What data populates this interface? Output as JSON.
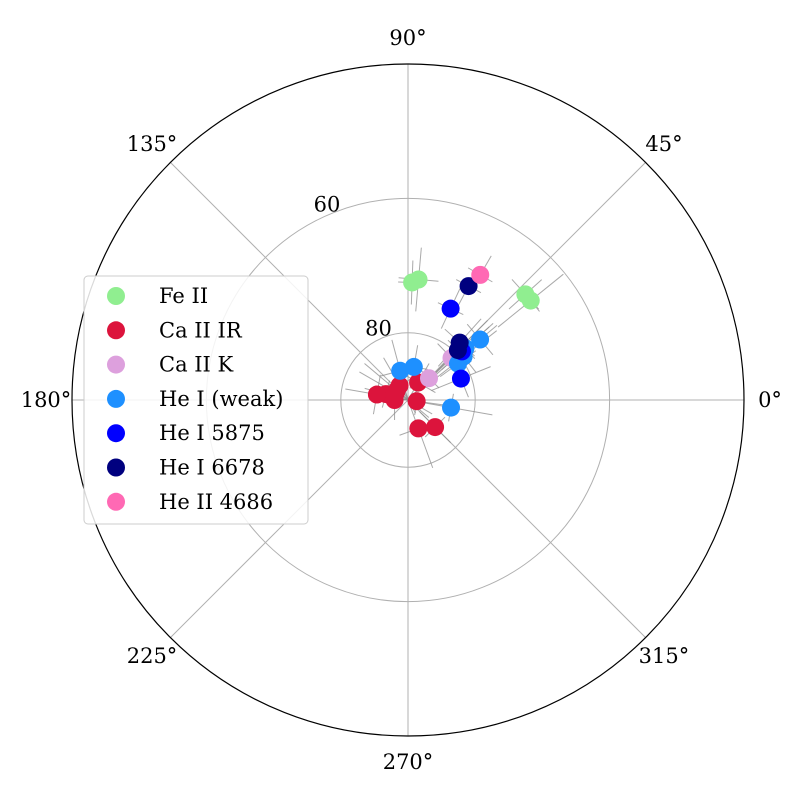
{
  "chart_data": {
    "type": "scatter",
    "projection": "polar",
    "theta_unit": "degrees",
    "radial_axis": "inclination (90 at center, decreasing outward)",
    "grid": true,
    "theta_ticks": [
      "0°",
      "45°",
      "90°",
      "135°",
      "180°",
      "225°",
      "270°",
      "315°"
    ],
    "r_ticks": [
      {
        "value": 80,
        "label": "80"
      },
      {
        "value": 60,
        "label": "60"
      }
    ],
    "rlim": [
      90,
      40
    ],
    "legend": {
      "placement": "left"
    },
    "series": [
      {
        "name": "Fe II",
        "color": "#90ee90",
        "points": [
          [
            88,
            72.5
          ],
          [
            85,
            72
          ],
          [
            39,
            66.5
          ],
          [
            42,
            66.5
          ]
        ]
      },
      {
        "name": "Ca II IR",
        "color": "#dc143c",
        "points": [
          [
            165,
            86.6
          ],
          [
            170,
            85.3
          ],
          [
            140,
            87.8
          ],
          [
            180,
            88.0
          ],
          [
            352,
            88.7
          ],
          [
            290,
            85.5
          ],
          [
            315,
            84.3
          ],
          [
            120,
            87.5
          ],
          [
            150,
            87.9
          ],
          [
            60,
            87.0
          ]
        ]
      },
      {
        "name": "Ca II K",
        "color": "#dda0dd",
        "points": [
          [
            46,
            85.5
          ],
          [
            44,
            81.0
          ]
        ]
      },
      {
        "name": "He I (weak)",
        "color": "#1e90ff",
        "points": [
          [
            80,
            85.0
          ],
          [
            105,
            85.5
          ],
          [
            350,
            83.5
          ],
          [
            40,
            76.0
          ],
          [
            42,
            78.5
          ],
          [
            38,
            79.5
          ],
          [
            36,
            80.8
          ]
        ]
      },
      {
        "name": "He I 5875",
        "color": "#0000ff",
        "points": [
          [
            65,
            75.0
          ],
          [
            22,
            81.5
          ],
          [
            42,
            79.2
          ]
        ]
      },
      {
        "name": "He I 6678",
        "color": "#00007f",
        "points": [
          [
            62,
            70.8
          ],
          [
            48,
            78.5
          ],
          [
            45,
            79.5
          ]
        ]
      },
      {
        "name": "He II 4686",
        "color": "#ff69b4",
        "points": [
          [
            60,
            68.5
          ]
        ]
      }
    ]
  },
  "legend_items": [
    {
      "label": "Fe II",
      "color": "#90ee90"
    },
    {
      "label": "Ca II IR",
      "color": "#dc143c"
    },
    {
      "label": "Ca II K",
      "color": "#dda0dd"
    },
    {
      "label": "He I (weak)",
      "color": "#1e90ff"
    },
    {
      "label": "He I 5875",
      "color": "#0000ff"
    },
    {
      "label": "He I 6678",
      "color": "#00007f"
    },
    {
      "label": "He II 4686",
      "color": "#ff69b4"
    }
  ]
}
